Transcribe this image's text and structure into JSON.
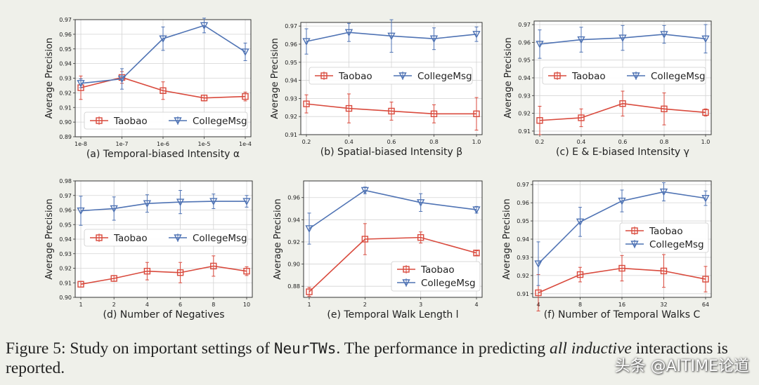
{
  "colors": {
    "taobao": "#d94a3d",
    "collegemsg": "#4f73b4",
    "grid": "#d4d4d4",
    "axes": "#333333",
    "plot_bg": "#ffffff"
  },
  "caption": {
    "prefix": "Figure 5: Study on important settings of ",
    "model": "NeurTWs",
    "middle": ".  The performance in predicting ",
    "emphasis": "all inductive",
    "suffix": " interactions is reported."
  },
  "watermark": "头条 @AITIME论道",
  "chart_data": [
    {
      "id": "a",
      "type": "line",
      "title": "(a) Temporal-biased Intensity α",
      "xlabel": "(a) Temporal-biased Intensity α",
      "ylabel": "Average Precision",
      "categories": [
        "1e-8",
        "1e-7",
        "1e-6",
        "1e-5",
        "1e-4"
      ],
      "yticks": [
        0.89,
        0.9,
        0.91,
        0.92,
        0.93,
        0.94,
        0.95,
        0.96,
        0.97
      ],
      "yticklabels": [
        "0.89",
        "0.90",
        "0.91",
        "0.92",
        "0.93",
        "0.94",
        "0.95",
        "0.96",
        "0.97"
      ],
      "ylim": [
        0.89,
        0.97
      ],
      "grid": true,
      "legend": "lower-center",
      "series": [
        {
          "name": "Taobao",
          "marker": "square",
          "values": [
            0.9235,
            0.9305,
            0.9215,
            0.9165,
            0.9175
          ],
          "errors": [
            0.008,
            0.004,
            0.006,
            0.002,
            0.003
          ]
        },
        {
          "name": "CollegeMsg",
          "marker": "triangle-down",
          "values": [
            0.9265,
            0.9295,
            0.957,
            0.966,
            0.948
          ],
          "errors": [
            0.003,
            0.007,
            0.008,
            0.005,
            0.006
          ]
        }
      ]
    },
    {
      "id": "b",
      "type": "line",
      "title": "(b) Spatial-biased Intensity β",
      "xlabel": "(b) Spatial-biased Intensity β",
      "ylabel": "Average Precision",
      "categories": [
        "0.2",
        "0.4",
        "0.6",
        "0.8",
        "1.0"
      ],
      "yticks": [
        0.91,
        0.92,
        0.93,
        0.94,
        0.95,
        0.96,
        0.97
      ],
      "yticklabels": [
        "0.91",
        "0.92",
        "0.93",
        "0.94",
        "0.95",
        "0.96",
        "0.97"
      ],
      "ylim": [
        0.91,
        0.972
      ],
      "grid": true,
      "legend": "center",
      "series": [
        {
          "name": "Taobao",
          "marker": "square",
          "values": [
            0.927,
            0.9245,
            0.923,
            0.9215,
            0.9215
          ],
          "errors": [
            0.005,
            0.008,
            0.005,
            0.005,
            0.009
          ]
        },
        {
          "name": "CollegeMsg",
          "marker": "triangle-down",
          "values": [
            0.9615,
            0.9665,
            0.9645,
            0.963,
            0.9655
          ],
          "errors": [
            0.007,
            0.005,
            0.009,
            0.006,
            0.004
          ]
        }
      ]
    },
    {
      "id": "c",
      "type": "line",
      "title": "(c) E & E-biased Intensity γ",
      "xlabel": "(c) E & E-biased Intensity γ",
      "ylabel": "Average Precision",
      "categories": [
        "0.2",
        "0.4",
        "0.6",
        "0.8",
        "1.0"
      ],
      "yticks": [
        0.91,
        0.92,
        0.93,
        0.94,
        0.95,
        0.96,
        0.97
      ],
      "yticklabels": [
        "0.91",
        "0.92",
        "0.93",
        "0.94",
        "0.95",
        "0.96",
        "0.97"
      ],
      "ylim": [
        0.908,
        0.972
      ],
      "grid": true,
      "legend": "center",
      "series": [
        {
          "name": "Taobao",
          "marker": "square",
          "values": [
            0.916,
            0.9175,
            0.9255,
            0.9225,
            0.9205
          ],
          "errors": [
            0.008,
            0.005,
            0.007,
            0.009,
            0.002
          ]
        },
        {
          "name": "CollegeMsg",
          "marker": "triangle-down",
          "values": [
            0.959,
            0.9615,
            0.9625,
            0.9645,
            0.962
          ],
          "errors": [
            0.008,
            0.007,
            0.007,
            0.005,
            0.008
          ]
        }
      ]
    },
    {
      "id": "d",
      "type": "line",
      "title": "(d) Number of Negatives",
      "xlabel": "(d) Number of Negatives",
      "ylabel": "Average Precision",
      "categories": [
        "1",
        "2",
        "4",
        "6",
        "8",
        "10"
      ],
      "yticks": [
        0.9,
        0.91,
        0.92,
        0.93,
        0.94,
        0.95,
        0.96,
        0.97,
        0.98
      ],
      "yticklabels": [
        "0.90",
        "0.91",
        "0.92",
        "0.93",
        "0.94",
        "0.95",
        "0.96",
        "0.97",
        "0.98"
      ],
      "ylim": [
        0.9,
        0.98
      ],
      "grid": true,
      "legend": "center",
      "series": [
        {
          "name": "Taobao",
          "marker": "square",
          "values": [
            0.909,
            0.913,
            0.918,
            0.917,
            0.9215,
            0.918
          ],
          "errors": [
            0.002,
            0.002,
            0.006,
            0.007,
            0.007,
            0.003
          ]
        },
        {
          "name": "CollegeMsg",
          "marker": "triangle-down",
          "values": [
            0.9595,
            0.961,
            0.9645,
            0.9655,
            0.966,
            0.966
          ],
          "errors": [
            0.01,
            0.008,
            0.006,
            0.008,
            0.005,
            0.004
          ]
        }
      ]
    },
    {
      "id": "e",
      "type": "line",
      "title": "(e) Temporal Walk Length l",
      "xlabel": "(e) Temporal Walk Length l",
      "ylabel": "Average Precision",
      "categories": [
        "1",
        "2",
        "3",
        "4"
      ],
      "yticks": [
        0.88,
        0.9,
        0.92,
        0.94,
        0.96
      ],
      "yticklabels": [
        "0.88",
        "0.90",
        "0.92",
        "0.94",
        "0.96"
      ],
      "ylim": [
        0.87,
        0.975
      ],
      "grid": true,
      "legend": "lower-right",
      "series": [
        {
          "name": "Taobao",
          "marker": "square",
          "values": [
            0.875,
            0.9225,
            0.924,
            0.91
          ],
          "errors": [
            0.004,
            0.014,
            0.005,
            0.002
          ]
        },
        {
          "name": "CollegeMsg",
          "marker": "triangle-down",
          "values": [
            0.932,
            0.9665,
            0.9555,
            0.949
          ],
          "errors": [
            0.014,
            0.003,
            0.008,
            0.003
          ]
        }
      ]
    },
    {
      "id": "f",
      "type": "line",
      "title": "(f) Number of Temporal Walks C",
      "xlabel": "(f) Number of Temporal Walks C",
      "ylabel": "Average Precision",
      "categories": [
        "4",
        "8",
        "16",
        "32",
        "64"
      ],
      "yticks": [
        0.91,
        0.92,
        0.93,
        0.94,
        0.95,
        0.96,
        0.97
      ],
      "yticklabels": [
        "0.91",
        "0.92",
        "0.93",
        "0.94",
        "0.95",
        "0.96",
        "0.97"
      ],
      "ylim": [
        0.908,
        0.972
      ],
      "grid": true,
      "legend": "center-right",
      "series": [
        {
          "name": "Taobao",
          "marker": "square",
          "values": [
            0.9105,
            0.9205,
            0.924,
            0.9225,
            0.918
          ],
          "errors": [
            0.01,
            0.004,
            0.007,
            0.009,
            0.007
          ]
        },
        {
          "name": "CollegeMsg",
          "marker": "triangle-down",
          "values": [
            0.9265,
            0.9495,
            0.961,
            0.966,
            0.9625
          ],
          "errors": [
            0.012,
            0.008,
            0.006,
            0.005,
            0.004
          ]
        }
      ]
    }
  ]
}
